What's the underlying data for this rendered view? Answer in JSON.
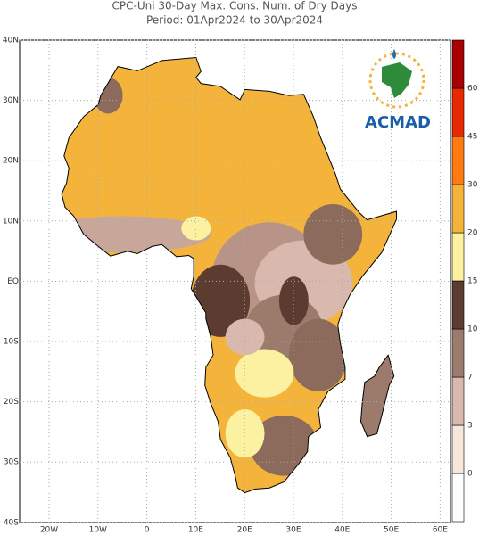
{
  "title": {
    "line1": "CPC-Uni 30-Day Max. Cons. Num. of Dry Days",
    "line2": "Period: 01Apr2024 to 30Apr2024"
  },
  "map": {
    "lat_labels": [
      "40N",
      "30N",
      "20N",
      "10N",
      "EQ",
      "10S",
      "20S",
      "30S",
      "40S"
    ],
    "lon_labels": [
      "20W",
      "10W",
      "0",
      "10E",
      "20E",
      "30E",
      "40E",
      "50E",
      "60E"
    ]
  },
  "legend": {
    "labels": [
      0,
      3,
      7,
      10,
      15,
      20,
      30,
      45,
      60
    ],
    "colors": [
      "#ffffff",
      "#f6e6dc",
      "#d9b8ae",
      "#9c7a6c",
      "#5c3c30",
      "#fbf1a0",
      "#f4b43c",
      "#ff7a10",
      "#e82800",
      "#a80000"
    ]
  },
  "logo": {
    "text": "ACMAD"
  }
}
